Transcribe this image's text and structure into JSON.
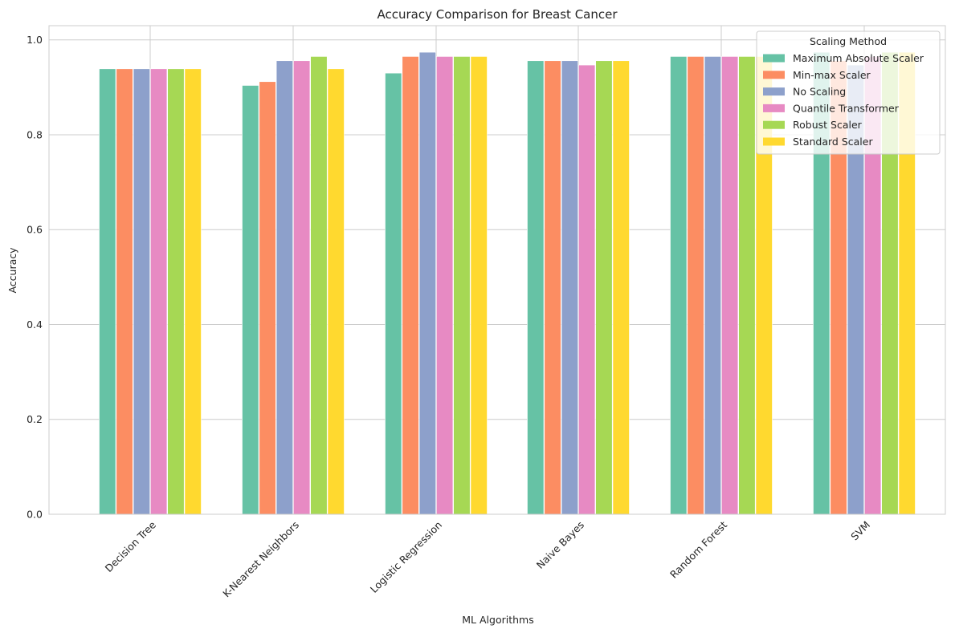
{
  "chart_data": {
    "type": "bar",
    "title": "Accuracy Comparison for Breast Cancer",
    "xlabel": "ML Algorithms",
    "ylabel": "Accuracy",
    "ylim": [
      0,
      1.03
    ],
    "yticks": [
      "0.0",
      "0.2",
      "0.4",
      "0.6",
      "0.8",
      "1.0"
    ],
    "ytick_values": [
      0.0,
      0.2,
      0.4,
      0.6,
      0.8,
      1.0
    ],
    "grid": true,
    "legend_placement": "top-right",
    "legend_title": "Scaling Method",
    "categories": [
      "Decision Tree",
      "K-Nearest Neighbors",
      "Logistic Regression",
      "Naive Bayes",
      "Random Forest",
      "SVM"
    ],
    "series": [
      {
        "name": "Maximum Absolute Scaler",
        "color": "#66c2a5",
        "values": [
          0.939,
          0.904,
          0.93,
          0.956,
          0.965,
          0.974
        ]
      },
      {
        "name": "Min-max Scaler",
        "color": "#fc8d62",
        "values": [
          0.939,
          0.912,
          0.965,
          0.956,
          0.965,
          0.956
        ]
      },
      {
        "name": "No Scaling",
        "color": "#8da0cb",
        "values": [
          0.939,
          0.956,
          0.974,
          0.956,
          0.965,
          0.947
        ]
      },
      {
        "name": "Quantile Transformer",
        "color": "#e78ac3",
        "values": [
          0.939,
          0.956,
          0.965,
          0.947,
          0.965,
          0.965
        ]
      },
      {
        "name": "Robust Scaler",
        "color": "#a6d854",
        "values": [
          0.939,
          0.965,
          0.965,
          0.956,
          0.965,
          0.974
        ]
      },
      {
        "name": "Standard Scaler",
        "color": "#ffd92f",
        "values": [
          0.939,
          0.939,
          0.965,
          0.956,
          0.965,
          0.974
        ]
      }
    ]
  }
}
